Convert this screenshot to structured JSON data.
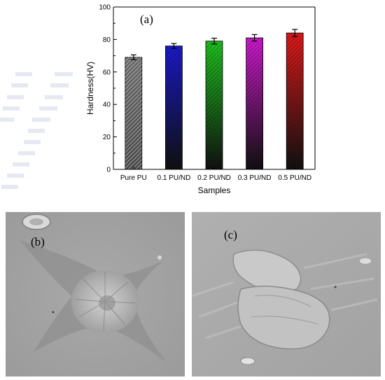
{
  "chart_data": {
    "type": "bar",
    "panel_label": "(a)",
    "categories": [
      "Pure PU",
      "0.1 PU/ND",
      "0.2 PU/ND",
      "0.3 PU/ND",
      "0.5 PU/ND"
    ],
    "values": [
      69,
      76,
      79,
      81,
      84
    ],
    "errors": [
      1.5,
      1.5,
      1.8,
      2.0,
      2.2
    ],
    "bar_colors": [
      "#5a5a5a",
      "#1a1acc",
      "#1fbf1f",
      "#cc1acc",
      "#dd1a1a"
    ],
    "xlabel": "Samples",
    "ylabel": "Hardness(HV)",
    "ylim": [
      0,
      100
    ],
    "yticks": [
      0,
      20,
      40,
      60,
      80,
      100
    ],
    "grid": false
  },
  "micrographs": [
    {
      "label": "(b)"
    },
    {
      "label": "(c)"
    }
  ]
}
